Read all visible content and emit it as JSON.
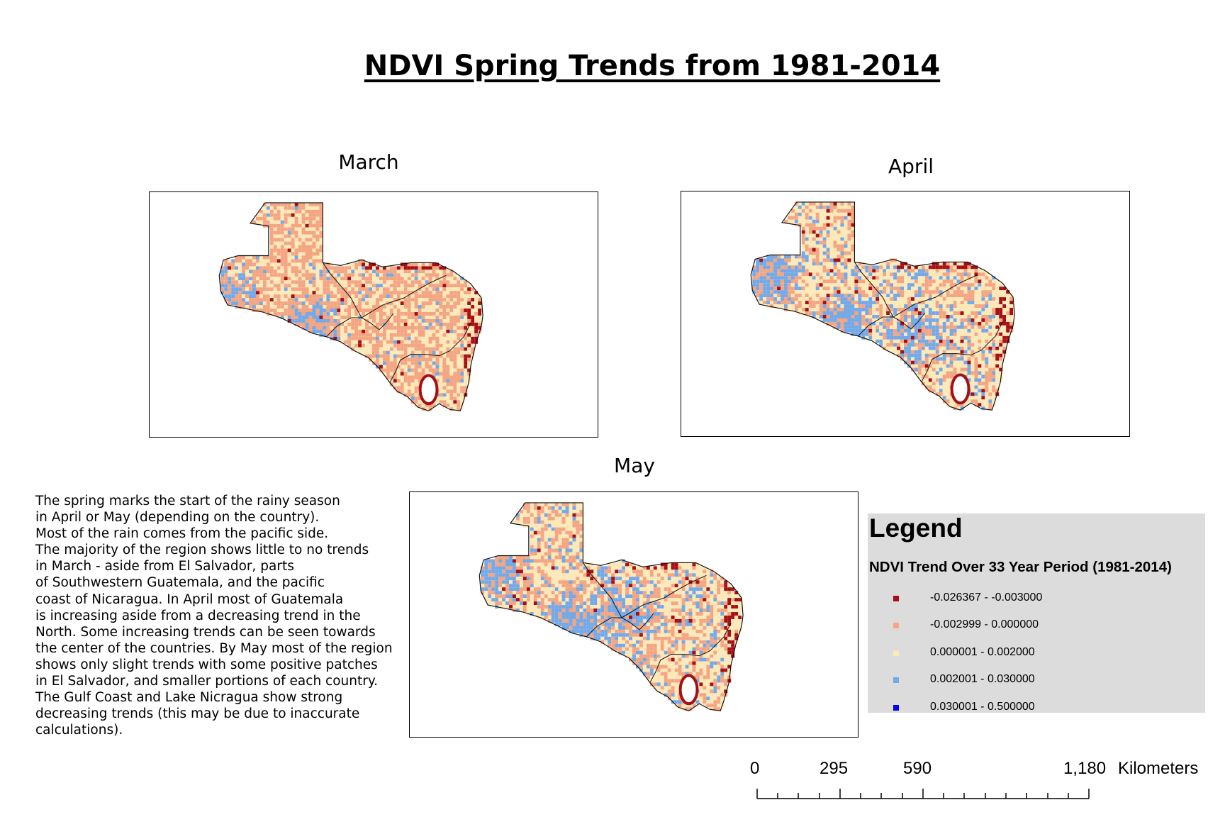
{
  "title": "NDVI Spring Trends from 1981-2014",
  "maps": [
    {
      "label": "March"
    },
    {
      "label": "April"
    },
    {
      "label": "May"
    }
  ],
  "description": [
    "The spring marks the start of the rainy season",
    "in April or May (depending on the country).",
    "Most of the rain comes from the pacific side.",
    "The majority of the region shows little to no trends",
    "in March - aside from El Salvador, parts",
    "of Southwestern Guatemala, and the pacific",
    "coast of Nicaragua. In April most of Guatemala",
    "is increasing aside from a decreasing trend in the",
    "North. Some increasing trends can be seen towards",
    "the center of the countries. By May most of the region",
    "shows only slight trends with some positive patches",
    "in El Salvador, and smaller portions of each country.",
    "The Gulf Coast and Lake Nicragua show strong",
    "decreasing trends (this may be due to inaccurate",
    "calculations)."
  ],
  "legend": {
    "title": "Legend",
    "subtitle": "NDVI Trend Over 33 Year Period (1981-2014)",
    "classes": [
      {
        "label": "-0.026367 - -0.003000",
        "color": "#a50f15"
      },
      {
        "label": "-0.002999 - 0.000000",
        "color": "#f4a582"
      },
      {
        "label": "0.000001 - 0.002000",
        "color": "#fde8b8"
      },
      {
        "label": "0.002001 - 0.030000",
        "color": "#74a9e8"
      },
      {
        "label": "0.030001 - 0.500000",
        "color": "#0000ee"
      }
    ]
  },
  "scalebar": {
    "ticks": [
      "0",
      "295",
      "590",
      "1,180"
    ],
    "unit": "Kilometers"
  }
}
